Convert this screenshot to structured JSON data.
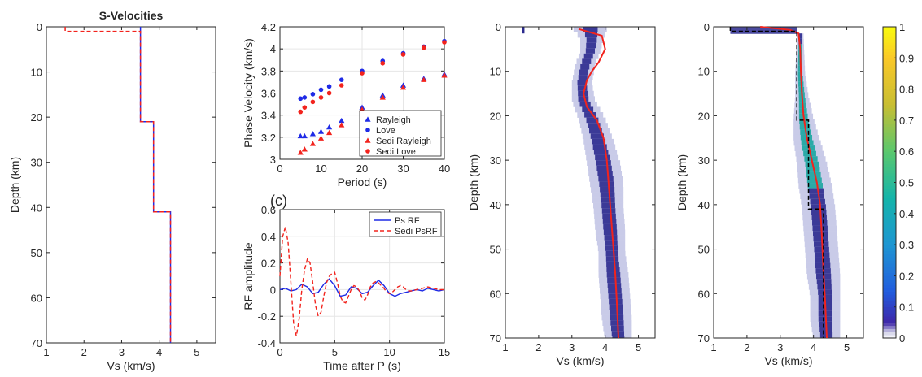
{
  "colors": {
    "blue": "#1f2be6",
    "red": "#f2231d",
    "black": "#000000",
    "axis": "#262626",
    "grid": "#e6e6e6",
    "density_dark": "#2b2a8e",
    "density_light": "#c9cbe8",
    "density_teal": "#1aa6a0"
  },
  "chart_data": [
    {
      "id": "velocity_profile",
      "type": "line",
      "title": "S-Velocities",
      "xlabel": "Vs (km/s)",
      "ylabel": "Depth (km)",
      "xlim": [
        1,
        5.5
      ],
      "ylim": [
        0,
        70
      ],
      "y_reversed": true,
      "grid": false,
      "xticks": [
        "1",
        "2",
        "3",
        "4",
        "5"
      ],
      "yticks": [
        "0",
        "10",
        "20",
        "30",
        "40",
        "50",
        "60",
        "70"
      ],
      "series": [
        {
          "style": "solid",
          "color": "blue",
          "x": [
            3.5,
            3.5,
            3.85,
            3.85,
            4.3,
            4.3
          ],
          "y": [
            0,
            21,
            21,
            41,
            41,
            70
          ]
        },
        {
          "style": "dashed",
          "color": "red",
          "x": [
            1.5,
            1.5,
            3.5,
            3.5,
            3.85,
            3.85,
            4.3,
            4.3
          ],
          "y": [
            0,
            1,
            1,
            21,
            21,
            41,
            41,
            70
          ]
        }
      ]
    },
    {
      "id": "dispersion",
      "type": "scatter",
      "xlabel": "Period (s)",
      "ylabel": "Phase Velocity (km/s)",
      "xlim": [
        0,
        40
      ],
      "ylim": [
        3,
        4.2
      ],
      "grid": true,
      "legend": "bottom-right",
      "xticks": [
        "0",
        "10",
        "20",
        "30",
        "40"
      ],
      "yticks": [
        "3",
        "3.2",
        "3.4",
        "3.6",
        "3.8",
        "4",
        "4.2"
      ],
      "x": [
        5,
        6,
        8,
        10,
        12,
        15,
        20,
        25,
        30,
        35,
        40
      ],
      "series": [
        {
          "name": "Rayleigh",
          "marker": "triangle",
          "color": "blue",
          "values": [
            3.21,
            3.21,
            3.23,
            3.25,
            3.29,
            3.35,
            3.47,
            3.58,
            3.67,
            3.73,
            3.77
          ]
        },
        {
          "name": "Love",
          "marker": "circle",
          "color": "blue",
          "values": [
            3.55,
            3.56,
            3.59,
            3.63,
            3.66,
            3.72,
            3.8,
            3.89,
            3.96,
            4.02,
            4.07
          ]
        },
        {
          "name": "Sedi Rayleigh",
          "marker": "triangle",
          "color": "red",
          "values": [
            3.06,
            3.09,
            3.14,
            3.19,
            3.24,
            3.31,
            3.45,
            3.56,
            3.65,
            3.72,
            3.76
          ]
        },
        {
          "name": "Sedi Love",
          "marker": "circle",
          "color": "red",
          "values": [
            3.43,
            3.47,
            3.52,
            3.56,
            3.6,
            3.67,
            3.78,
            3.87,
            3.95,
            4.01,
            4.06
          ]
        }
      ]
    },
    {
      "id": "receiver_function",
      "type": "line",
      "panel_label": "(c)",
      "xlabel": "Time after P (s)",
      "ylabel": "RF amplitude",
      "xlim": [
        0,
        15
      ],
      "ylim": [
        -0.4,
        0.6
      ],
      "grid": true,
      "legend": "top-right",
      "xticks": [
        "0",
        "5",
        "10",
        "15"
      ],
      "yticks": [
        "-0.4",
        "-0.2",
        "0",
        "0.2",
        "0.4",
        "0.6"
      ],
      "series": [
        {
          "name": "Ps RF",
          "style": "solid",
          "color": "blue",
          "x": [
            0,
            0.5,
            1,
            1.5,
            2,
            2.5,
            3,
            3.5,
            4,
            4.5,
            5,
            5.5,
            6,
            6.5,
            7,
            7.5,
            8,
            8.5,
            9,
            9.5,
            10,
            10.5,
            11,
            11.5,
            12,
            12.5,
            13,
            13.5,
            14,
            14.5,
            15
          ],
          "values": [
            0.0,
            0.01,
            -0.01,
            0.0,
            0.04,
            0.02,
            -0.03,
            -0.02,
            0.04,
            0.08,
            0.03,
            -0.05,
            -0.04,
            0.02,
            0.01,
            -0.03,
            -0.02,
            0.03,
            0.07,
            0.03,
            -0.03,
            -0.05,
            -0.03,
            -0.02,
            -0.01,
            0.0,
            -0.01,
            0.01,
            0.0,
            -0.01,
            0.0
          ]
        },
        {
          "name": "Sedi PsRF",
          "style": "dashed",
          "color": "red",
          "x": [
            0,
            0.25,
            0.5,
            0.75,
            1,
            1.25,
            1.5,
            1.75,
            2,
            2.25,
            2.5,
            2.75,
            3,
            3.25,
            3.5,
            3.75,
            4,
            4.25,
            4.5,
            4.75,
            5,
            5.25,
            5.5,
            5.75,
            6,
            6.25,
            6.5,
            6.75,
            7,
            7.25,
            7.5,
            7.75,
            8,
            8.25,
            8.5,
            8.75,
            9,
            9.25,
            9.5,
            9.75,
            10,
            10.25,
            10.5,
            10.75,
            11,
            11.25,
            11.5,
            11.75,
            12,
            12.5,
            13,
            13.5,
            14,
            14.5,
            15
          ],
          "values": [
            0.1,
            0.4,
            0.47,
            0.35,
            0.05,
            -0.25,
            -0.35,
            -0.22,
            0.0,
            0.15,
            0.23,
            0.2,
            0.05,
            -0.12,
            -0.2,
            -0.17,
            -0.05,
            0.05,
            0.1,
            0.12,
            0.13,
            0.05,
            -0.05,
            -0.09,
            -0.1,
            -0.05,
            0.0,
            0.03,
            0.02,
            -0.01,
            -0.06,
            -0.08,
            -0.04,
            0.02,
            0.05,
            0.06,
            0.05,
            0.03,
            0.01,
            -0.02,
            -0.03,
            -0.02,
            0.0,
            0.02,
            0.03,
            0.02,
            0.0,
            -0.01,
            -0.01,
            0.0,
            0.01,
            0.02,
            0.01,
            0.0,
            0.0
          ]
        }
      ]
    },
    {
      "id": "posterior_1",
      "type": "heatmap",
      "xlabel": "Vs (km/s)",
      "ylabel": "Depth (km)",
      "xlim": [
        1,
        5.5
      ],
      "ylim": [
        0,
        70
      ],
      "y_reversed": true,
      "grid": false,
      "xticks": [
        "1",
        "2",
        "3",
        "4",
        "5"
      ],
      "yticks": [
        "0",
        "10",
        "20",
        "30",
        "40",
        "50",
        "60",
        "70"
      ],
      "density_band": {
        "depth": [
          0,
          2,
          5,
          8,
          12,
          16,
          20,
          25,
          30,
          35,
          40,
          45,
          50,
          55,
          60,
          65,
          70
        ],
        "center": [
          3.55,
          3.6,
          3.55,
          3.4,
          3.3,
          3.35,
          3.6,
          3.8,
          3.95,
          4.05,
          4.1,
          4.15,
          4.2,
          4.25,
          4.3,
          4.35,
          4.4
        ],
        "halfwidth": [
          0.5,
          0.35,
          0.3,
          0.3,
          0.3,
          0.35,
          0.4,
          0.45,
          0.5,
          0.5,
          0.45,
          0.45,
          0.4,
          0.45,
          0.45,
          0.45,
          0.4
        ]
      },
      "series": [
        {
          "style": "solid",
          "color": "red",
          "x": [
            3.2,
            3.9,
            4.0,
            3.8,
            3.6,
            3.45,
            3.35,
            3.45,
            3.75,
            3.95,
            4.05,
            4.1,
            4.15,
            4.2,
            4.25,
            4.3,
            4.35,
            4.4
          ],
          "y": [
            0.5,
            2,
            5,
            8,
            10,
            12,
            15,
            18,
            21,
            25,
            30,
            35,
            40,
            45,
            50,
            55,
            62,
            70
          ]
        }
      ]
    },
    {
      "id": "posterior_2",
      "type": "heatmap",
      "xlabel": "Vs (km/s)",
      "ylabel": "Depth (km)",
      "xlim": [
        1,
        5.5
      ],
      "ylim": [
        0,
        70
      ],
      "y_reversed": true,
      "grid": false,
      "xticks": [
        "1",
        "2",
        "3",
        "4",
        "5"
      ],
      "yticks": [
        "0",
        "10",
        "20",
        "30",
        "40",
        "50",
        "60",
        "70"
      ],
      "density_band": {
        "depth": [
          1.5,
          5,
          10,
          15,
          20,
          25,
          30,
          35,
          40,
          45,
          50,
          55,
          60,
          65,
          70
        ],
        "center": [
          3.6,
          3.6,
          3.6,
          3.65,
          3.7,
          3.8,
          3.95,
          4.05,
          4.15,
          4.2,
          4.25,
          4.3,
          4.35,
          4.35,
          4.4
        ],
        "halfwidth": [
          0.1,
          0.12,
          0.15,
          0.2,
          0.3,
          0.4,
          0.45,
          0.5,
          0.5,
          0.5,
          0.5,
          0.5,
          0.45,
          0.45,
          0.4
        ]
      },
      "series": [
        {
          "style": "solid",
          "color": "red",
          "x": [
            2.4,
            3.3,
            3.55,
            3.6,
            3.62,
            3.65,
            3.7,
            3.8,
            3.95,
            4.1,
            4.2,
            4.25,
            4.3,
            4.35,
            4.4
          ],
          "y": [
            0,
            0.7,
            1.5,
            5,
            10,
            15,
            20,
            25,
            30,
            35,
            40,
            47,
            55,
            62,
            70
          ]
        },
        {
          "style": "dashed",
          "color": "black",
          "x": [
            1.5,
            1.5,
            3.5,
            3.5,
            3.85,
            3.85,
            4.3,
            4.3
          ],
          "y": [
            0,
            1,
            1,
            21,
            21,
            41,
            41,
            70
          ]
        }
      ]
    }
  ],
  "colorbar": {
    "ticks": [
      "0",
      "0.1",
      "0.2",
      "0.3",
      "0.4",
      "0.5",
      "0.6",
      "0.7",
      "0.8",
      "0.9",
      "1"
    ],
    "min": 0,
    "max": 1,
    "colormap": "parula"
  }
}
